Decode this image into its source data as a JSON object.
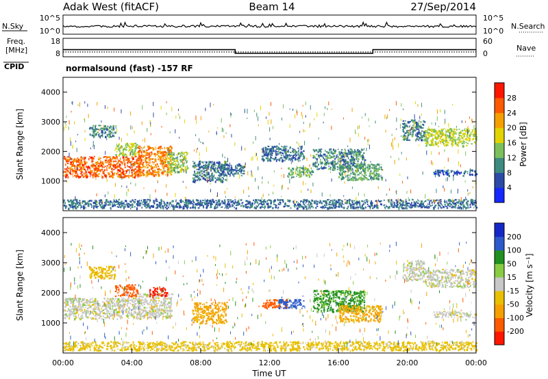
{
  "header": {
    "station": "Adak West (fitACF)",
    "beam": "Beam 14",
    "date": "27/Sep/2014"
  },
  "nsky_panel": {
    "label": "N.Sky",
    "right_label": "N.Search",
    "left_ticks": [
      "10^5",
      "10^0"
    ],
    "right_ticks": [
      "10^5",
      "10^0"
    ]
  },
  "freq_panel": {
    "label_line1": "Freq.",
    "label_line2": "[MHz]",
    "left_ticks": [
      "18",
      "8"
    ],
    "right_ticks": [
      "60",
      "0"
    ],
    "right_label": "Nave",
    "cpid_label": "CPID",
    "cpid_text": "normalsound (fast) -157 RF",
    "freq_series": [
      {
        "t": 0,
        "f": 12.6
      },
      {
        "t": 10,
        "f": 12.6
      },
      {
        "t": 10,
        "f": 10.6
      },
      {
        "t": 18,
        "f": 10.6
      },
      {
        "t": 18,
        "f": 12.6
      },
      {
        "t": 24,
        "f": 12.6
      }
    ]
  },
  "chart_data": [
    {
      "type": "heatmap",
      "name": "power",
      "title": "",
      "ylabel": "Slant Range [km]",
      "yticks": [
        "1000",
        "2000",
        "3000",
        "4000"
      ],
      "ylim": [
        0,
        4500
      ],
      "colorbar_label": "Power [dB]",
      "colorbar_ticks": [
        "4",
        "8",
        "12",
        "16",
        "20",
        "24",
        "28"
      ],
      "colorbar_colors": [
        "#1428ff",
        "#2c4aa8",
        "#3f8a80",
        "#7cc05c",
        "#e2d400",
        "#f5a000",
        "#ff5a00",
        "#ff1600"
      ],
      "regions": [
        {
          "t0": 0.0,
          "t1": 4.5,
          "r0": 1150,
          "r1": 1850,
          "v": 26
        },
        {
          "t0": 4.3,
          "t1": 6.3,
          "r0": 1200,
          "r1": 2200,
          "v": 24
        },
        {
          "t0": 6.0,
          "t1": 7.2,
          "r0": 1300,
          "r1": 2000,
          "v": 15
        },
        {
          "t0": 1.5,
          "t1": 3.0,
          "r0": 2500,
          "r1": 2900,
          "v": 10
        },
        {
          "t0": 3.0,
          "t1": 4.3,
          "r0": 1900,
          "r1": 2300,
          "v": 16
        },
        {
          "t0": 7.5,
          "t1": 9.5,
          "r0": 1000,
          "r1": 1700,
          "v": 9
        },
        {
          "t0": 9.0,
          "t1": 10.5,
          "r0": 1200,
          "r1": 1600,
          "v": 8
        },
        {
          "t0": 11.5,
          "t1": 14.0,
          "r0": 1700,
          "r1": 2200,
          "v": 8
        },
        {
          "t0": 13.0,
          "t1": 14.5,
          "r0": 1150,
          "r1": 1500,
          "v": 13
        },
        {
          "t0": 14.5,
          "t1": 17.5,
          "r0": 1400,
          "r1": 2100,
          "v": 10
        },
        {
          "t0": 16.0,
          "t1": 18.5,
          "r0": 1050,
          "r1": 1600,
          "v": 12
        },
        {
          "t0": 19.7,
          "t1": 21.0,
          "r0": 2400,
          "r1": 3100,
          "v": 10
        },
        {
          "t0": 21.0,
          "t1": 24.0,
          "r0": 2200,
          "r1": 2800,
          "v": 16
        },
        {
          "t0": 21.5,
          "t1": 24.0,
          "r0": 1200,
          "r1": 1400,
          "v": 7
        },
        {
          "t0": 0.0,
          "t1": 24.0,
          "r0": 100,
          "r1": 400,
          "v": 8
        }
      ],
      "xticks": [],
      "xlabel": ""
    },
    {
      "type": "heatmap",
      "name": "velocity",
      "title": "",
      "ylabel": "Slant Range [km]",
      "yticks": [
        "1000",
        "2000",
        "3000",
        "4000"
      ],
      "ylim": [
        0,
        4500
      ],
      "colorbar_label": "Velocity [m s⁻¹]",
      "colorbar_ticks": [
        "-200",
        "-100",
        "-50",
        "-15",
        "15",
        "50",
        "100",
        "200"
      ],
      "colorbar_colors": [
        "#ff1600",
        "#ff5a00",
        "#f5a000",
        "#e8c000",
        "#c8c8c8",
        "#88cc44",
        "#209020",
        "#2c5acc",
        "#1428c8"
      ],
      "regions": [
        {
          "t0": 0.0,
          "t1": 4.5,
          "r0": 1150,
          "r1": 1850,
          "v": 0
        },
        {
          "t0": 4.3,
          "t1": 6.3,
          "r0": 1200,
          "r1": 2000,
          "v": 0
        },
        {
          "t0": 3.0,
          "t1": 4.3,
          "r0": 1900,
          "r1": 2300,
          "v": -150
        },
        {
          "t0": 5.0,
          "t1": 6.0,
          "r0": 1900,
          "r1": 2200,
          "v": -220
        },
        {
          "t0": 1.5,
          "t1": 3.0,
          "r0": 2500,
          "r1": 2900,
          "v": -40
        },
        {
          "t0": 7.5,
          "t1": 9.5,
          "r0": 1000,
          "r1": 1700,
          "v": -60
        },
        {
          "t0": 11.5,
          "t1": 13.0,
          "r0": 1500,
          "r1": 1800,
          "v": -180
        },
        {
          "t0": 12.5,
          "t1": 14.0,
          "r0": 1500,
          "r1": 1800,
          "v": 120
        },
        {
          "t0": 14.5,
          "t1": 17.5,
          "r0": 1400,
          "r1": 2100,
          "v": 60
        },
        {
          "t0": 16.0,
          "t1": 18.5,
          "r0": 1050,
          "r1": 1600,
          "v": -60
        },
        {
          "t0": 19.7,
          "t1": 21.0,
          "r0": 2400,
          "r1": 3100,
          "v": 0
        },
        {
          "t0": 21.0,
          "t1": 24.0,
          "r0": 2200,
          "r1": 2800,
          "v": 0
        },
        {
          "t0": 21.5,
          "t1": 24.0,
          "r0": 1200,
          "r1": 1400,
          "v": 0
        },
        {
          "t0": 0.0,
          "t1": 24.0,
          "r0": 100,
          "r1": 400,
          "v": -30
        }
      ],
      "xticks": [
        "00:00",
        "04:00",
        "08:00",
        "12:00",
        "16:00",
        "20:00",
        "00:00"
      ],
      "xlabel": "Time UT"
    }
  ]
}
